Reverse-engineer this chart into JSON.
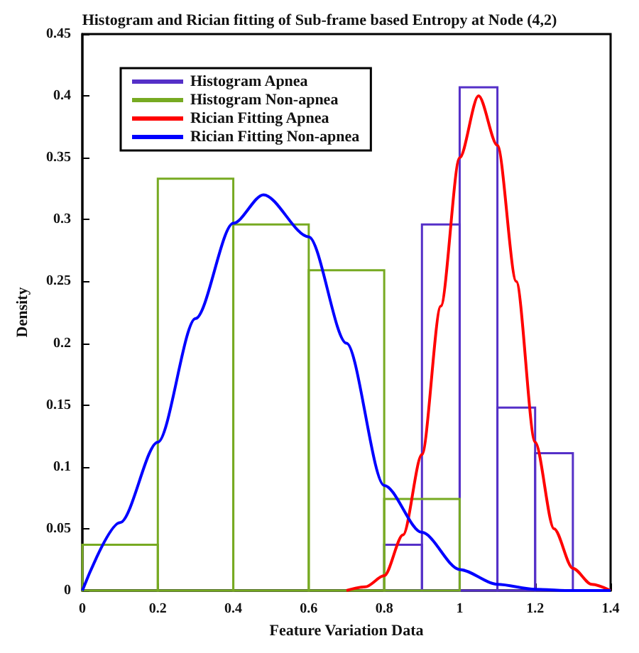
{
  "chart_data": {
    "type": "histogram",
    "title": "Histogram and Rician fitting of Sub-frame based Entropy at Node (4,2)",
    "xlabel": "Feature Variation Data",
    "ylabel": "Density",
    "xlim": [
      0,
      1.4
    ],
    "xticks": [
      0,
      0.2,
      0.4,
      0.6,
      0.8,
      1,
      1.2,
      1.4
    ],
    "ylim": [
      0,
      0.45
    ],
    "yticks": [
      0,
      0.05,
      0.1,
      0.15,
      0.2,
      0.25,
      0.3,
      0.35,
      0.4,
      0.45
    ],
    "legend": "top left",
    "grid": false,
    "series": [
      {
        "name": "Histogram Apnea",
        "color": "#5530c8",
        "bins": [
          0.8,
          0.9,
          1.0,
          1.1,
          1.2,
          1.3
        ],
        "values": [
          0.037,
          0.296,
          0.407,
          0.148,
          0.111
        ]
      },
      {
        "name": "Histogram Non-apnea",
        "color": "#77aa22",
        "bins": [
          0,
          0.2,
          0.4,
          0.6,
          0.8,
          1.0
        ],
        "values": [
          0.037,
          0.333,
          0.296,
          0.259,
          0.074
        ]
      },
      {
        "type": "line",
        "name": "Rician Fitting Apnea",
        "color": "#ff0000",
        "x": [
          0.7,
          0.75,
          0.8,
          0.85,
          0.9,
          0.95,
          1.0,
          1.05,
          1.1,
          1.15,
          1.2,
          1.25,
          1.3,
          1.35,
          1.4
        ],
        "values": [
          0,
          0.003,
          0.012,
          0.045,
          0.11,
          0.23,
          0.35,
          0.4,
          0.36,
          0.25,
          0.12,
          0.05,
          0.018,
          0.005,
          0
        ]
      },
      {
        "type": "line",
        "name": "Rician Fitting Non-apnea",
        "color": "#0000ff",
        "x": [
          0,
          0.1,
          0.2,
          0.3,
          0.4,
          0.48,
          0.6,
          0.7,
          0.8,
          0.9,
          1.0,
          1.1,
          1.2,
          1.3,
          1.4
        ],
        "values": [
          0,
          0.055,
          0.12,
          0.22,
          0.297,
          0.32,
          0.286,
          0.2,
          0.085,
          0.047,
          0.017,
          0.005,
          0.001,
          0,
          0
        ]
      }
    ]
  }
}
